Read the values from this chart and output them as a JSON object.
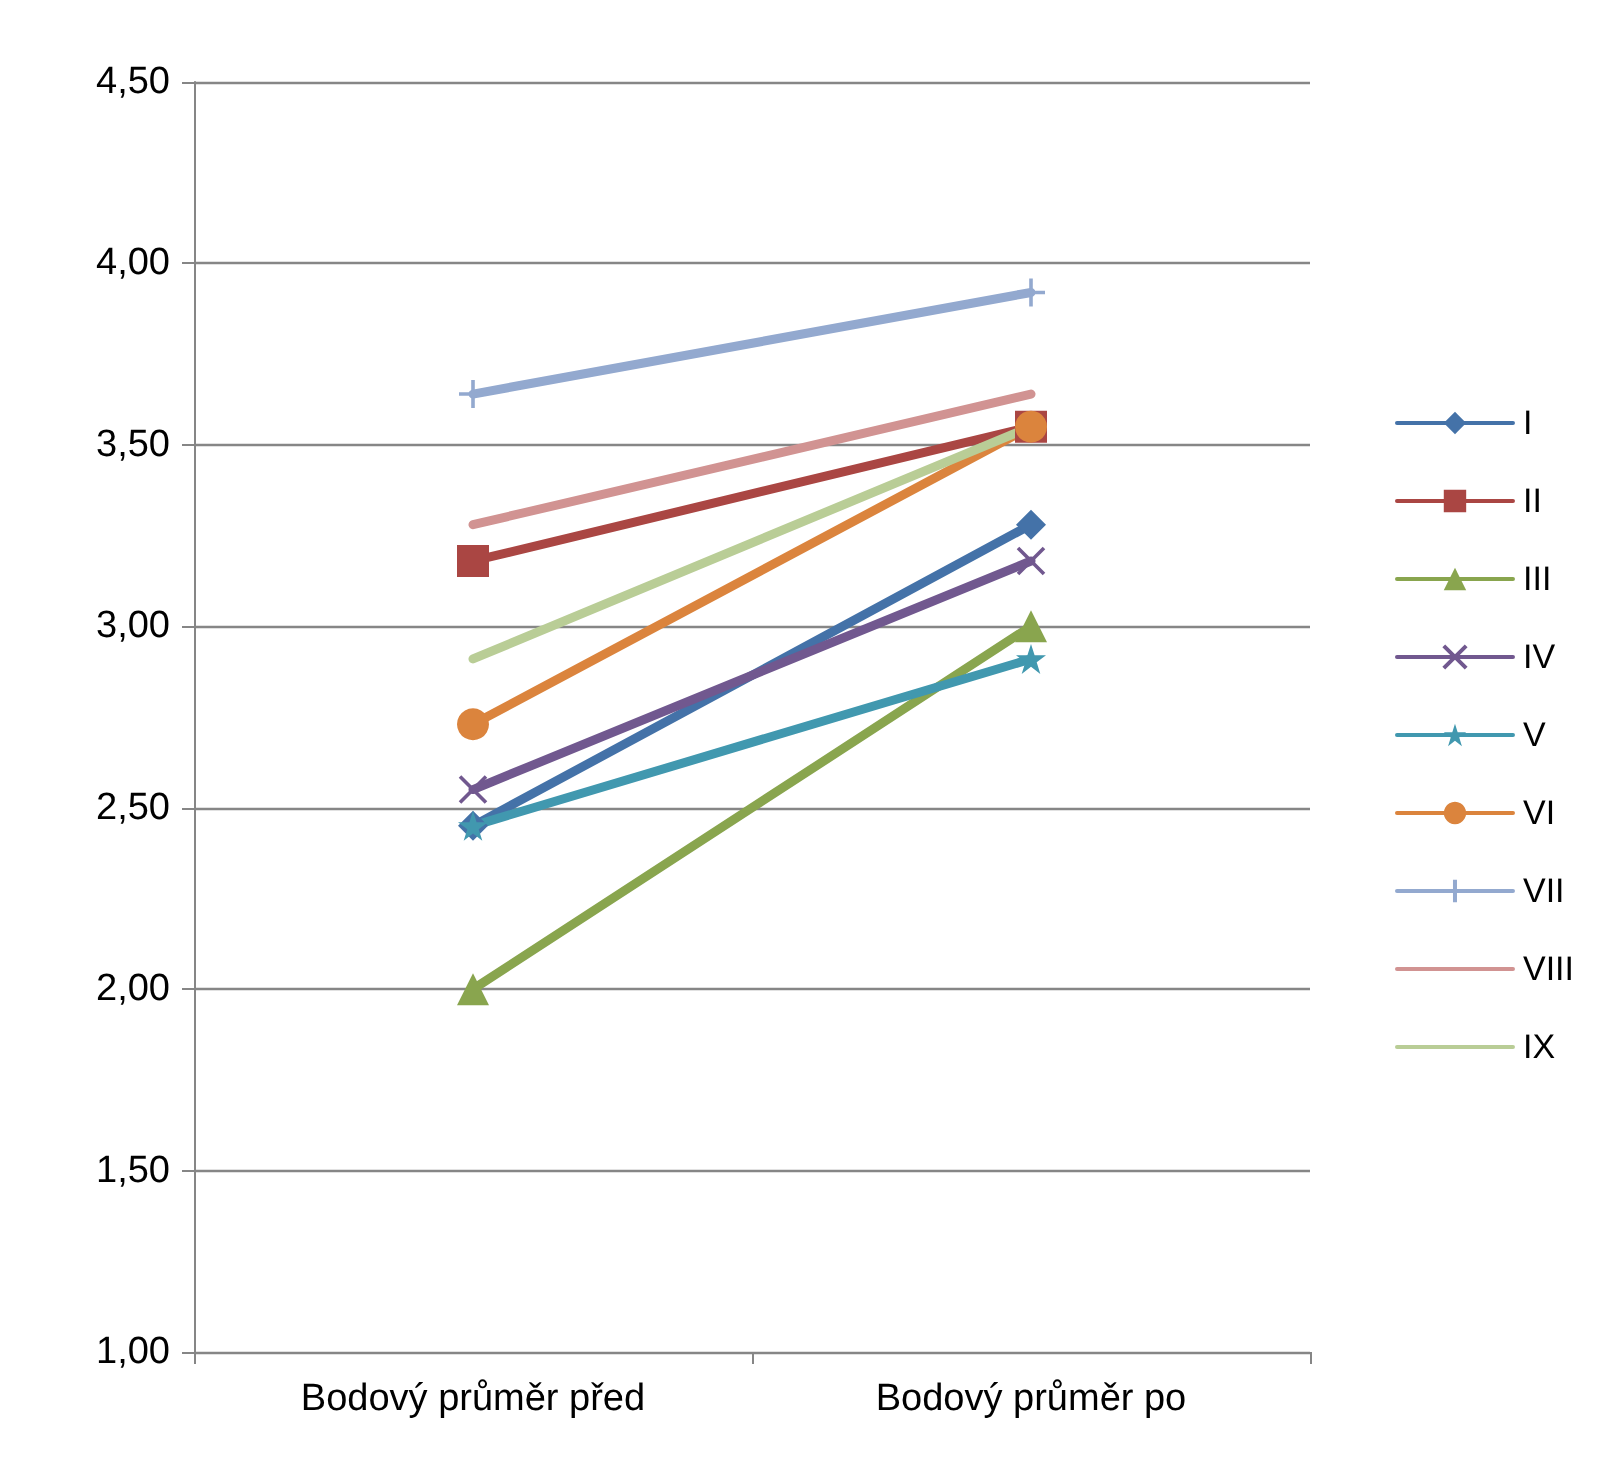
{
  "chart_data": {
    "type": "line",
    "categories": [
      "Bodový průměr před",
      "Bodový průměr po"
    ],
    "series": [
      {
        "name": "I",
        "color": "#4472a8",
        "marker": "diamond",
        "values": [
          2.45,
          3.28
        ]
      },
      {
        "name": "II",
        "color": "#aa4643",
        "marker": "square",
        "values": [
          3.18,
          3.55
        ]
      },
      {
        "name": "III",
        "color": "#89a54e",
        "marker": "triangle",
        "values": [
          2.0,
          3.0
        ]
      },
      {
        "name": "IV",
        "color": "#71588f",
        "marker": "cross",
        "values": [
          2.55,
          3.18
        ]
      },
      {
        "name": "V",
        "color": "#4198af",
        "marker": "star",
        "values": [
          2.45,
          2.91
        ]
      },
      {
        "name": "VI",
        "color": "#db843d",
        "marker": "circle",
        "values": [
          2.73,
          3.55
        ]
      },
      {
        "name": "VII",
        "color": "#93a9cf",
        "marker": "plus",
        "values": [
          3.64,
          3.92
        ]
      },
      {
        "name": "VIII",
        "color": "#d19392",
        "marker": "none",
        "values": [
          3.28,
          3.64
        ]
      },
      {
        "name": "IX",
        "color": "#b9cd96",
        "marker": "none",
        "values": [
          2.91,
          3.55
        ]
      }
    ],
    "ylim": [
      1,
      4.5
    ],
    "yticks": [
      {
        "value": 1,
        "label": "1,00"
      },
      {
        "value": 1.5,
        "label": "1,50"
      },
      {
        "value": 2,
        "label": "2,00"
      },
      {
        "value": 2.5,
        "label": "2,50"
      },
      {
        "value": 3,
        "label": "3,00"
      },
      {
        "value": 3.5,
        "label": "3,50"
      },
      {
        "value": 4,
        "label": "4,00"
      },
      {
        "value": 4.5,
        "label": "4,50"
      }
    ],
    "grid": "y",
    "legend": "right",
    "line_style": "solid"
  }
}
